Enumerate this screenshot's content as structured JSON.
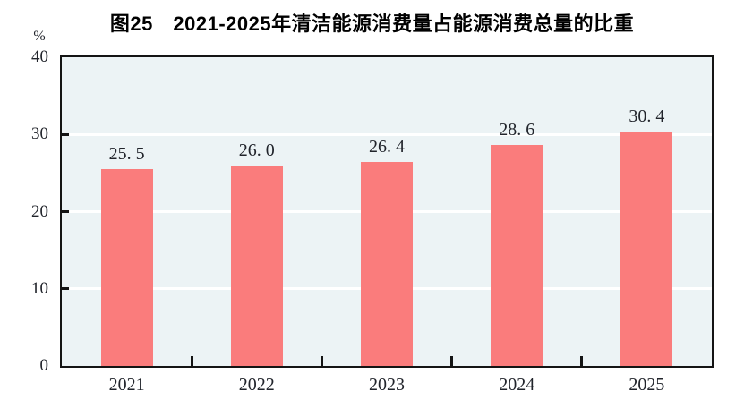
{
  "title": "图25　2021-2025年清洁能源消费量占能源消费总量的比重",
  "chart_data": {
    "type": "bar",
    "title": "图25　2021-2025年清洁能源消费量占能源消费总量的比重",
    "categories": [
      "2021",
      "2022",
      "2023",
      "2024",
      "2025"
    ],
    "values": [
      25.5,
      26.0,
      26.4,
      28.6,
      30.4
    ],
    "value_labels": [
      "25. 5",
      "26. 0",
      "26. 4",
      "28. 6",
      "30. 4"
    ],
    "xlabel": "",
    "ylabel": "%",
    "ylim": [
      0,
      40
    ],
    "yticks": [
      0,
      10,
      20,
      30,
      40
    ],
    "gridline_values": [
      10,
      20,
      30
    ],
    "grid": "horizontal-white",
    "legend": "none",
    "bar_color": "#FA7C7C",
    "plot_background": "#ECF3F5",
    "gridline_color": "#FFFFFF",
    "axis_color": "#141414",
    "text_color": "#21242B"
  }
}
